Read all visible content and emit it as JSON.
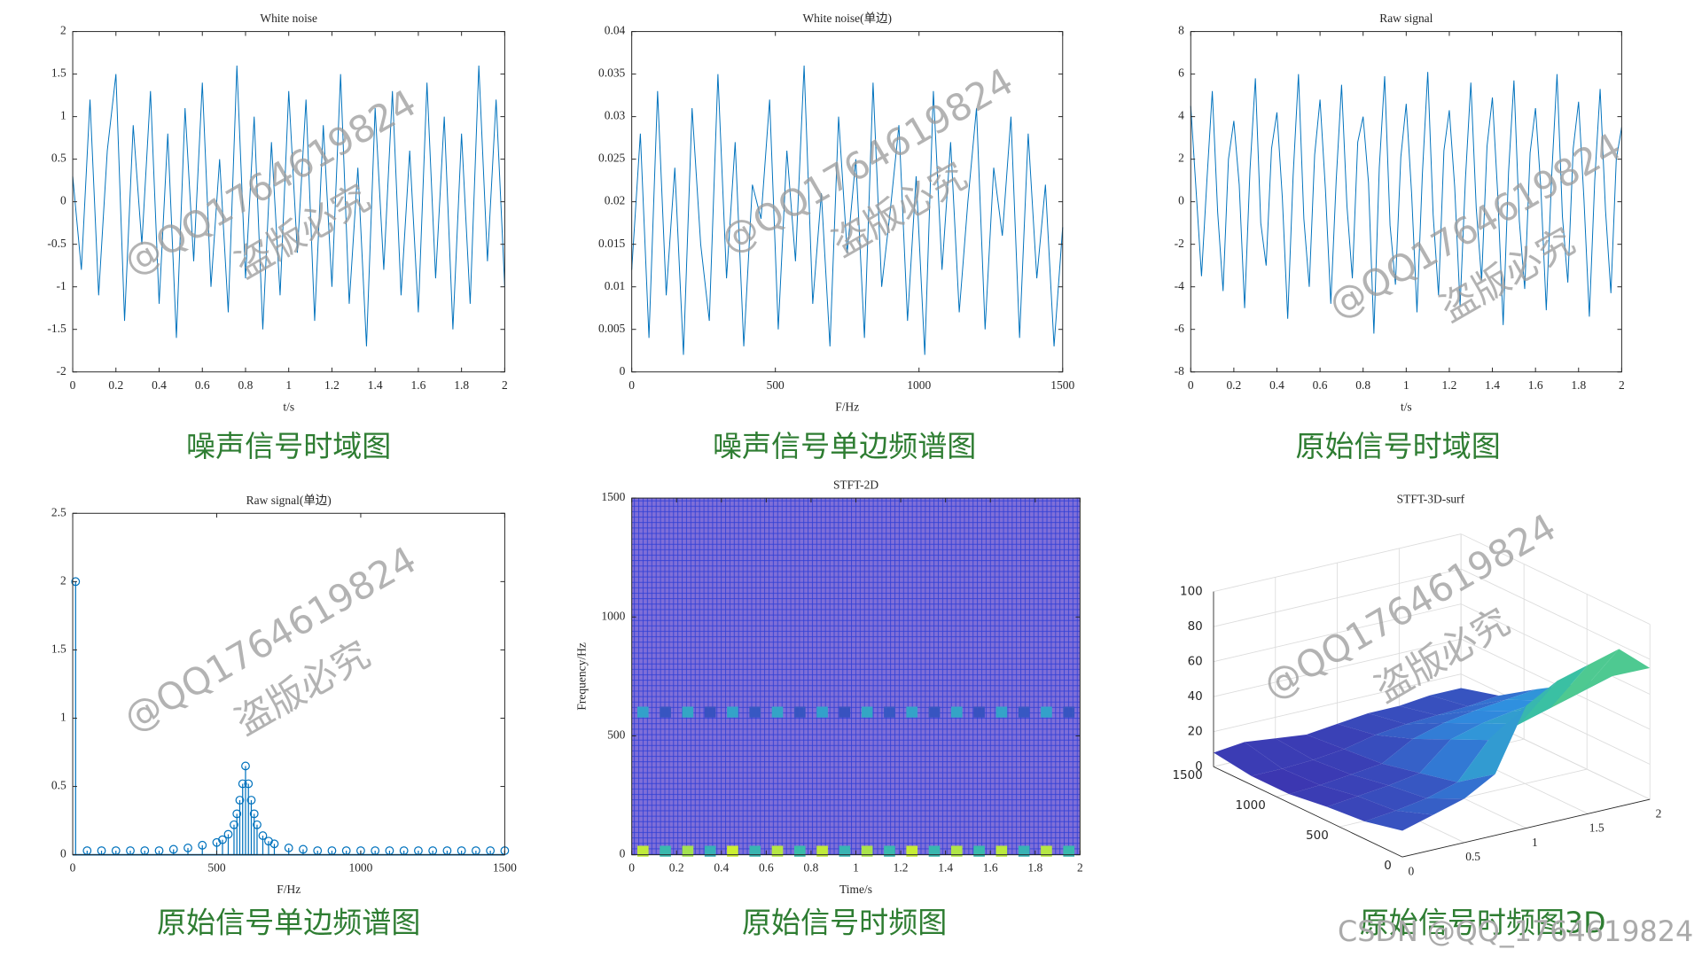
{
  "watermarks": [
    "@QQ1764619824",
    "盗版必究",
    "CSDN @QQ_1764619824"
  ],
  "chart_data": [
    {
      "type": "line",
      "title": "White noise",
      "xlabel": "t/s",
      "caption": "噪声信号时域图",
      "color": "#0072bd",
      "xlim": [
        0,
        2
      ],
      "ylim": [
        -2,
        2
      ],
      "xticks": [
        0,
        0.2,
        0.4,
        0.6,
        0.8,
        1,
        1.2,
        1.4,
        1.6,
        1.8,
        2
      ],
      "yticks": [
        -2,
        -1.5,
        -1,
        -0.5,
        0,
        0.5,
        1,
        1.5,
        2
      ],
      "x": [
        0,
        0.04,
        0.08,
        0.12,
        0.16,
        0.2,
        0.24,
        0.28,
        0.32,
        0.36,
        0.4,
        0.44,
        0.48,
        0.52,
        0.56,
        0.6,
        0.64,
        0.68,
        0.72,
        0.76,
        0.8,
        0.84,
        0.88,
        0.92,
        0.96,
        1,
        1.04,
        1.08,
        1.12,
        1.16,
        1.2,
        1.24,
        1.28,
        1.32,
        1.36,
        1.4,
        1.44,
        1.48,
        1.52,
        1.56,
        1.6,
        1.64,
        1.68,
        1.72,
        1.76,
        1.8,
        1.84,
        1.88,
        1.92,
        1.96,
        2
      ],
      "values": [
        0.3,
        -0.8,
        1.2,
        -1.1,
        0.6,
        1.5,
        -1.4,
        0.9,
        -0.5,
        1.3,
        -1.2,
        0.8,
        -1.6,
        1.1,
        -0.7,
        1.4,
        -1.0,
        0.5,
        -1.3,
        1.6,
        -0.9,
        1.0,
        -1.5,
        0.7,
        -1.1,
        1.3,
        -0.6,
        1.2,
        -1.4,
        0.9,
        -1.0,
        1.5,
        -1.2,
        0.4,
        -1.7,
        1.1,
        -0.8,
        1.3,
        -1.1,
        0.6,
        -1.3,
        1.4,
        -0.9,
        1.0,
        -1.5,
        0.8,
        -1.2,
        1.6,
        -0.7,
        1.2,
        -1.0
      ]
    },
    {
      "type": "line",
      "title": "White noise(单边)",
      "xlabel": "F/Hz",
      "caption": "噪声信号单边频谱图",
      "color": "#0072bd",
      "xlim": [
        0,
        1500
      ],
      "ylim": [
        0,
        0.04
      ],
      "xticks": [
        0,
        500,
        1000,
        1500
      ],
      "yticks": [
        0,
        0.005,
        0.01,
        0.015,
        0.02,
        0.025,
        0.03,
        0.035,
        0.04
      ],
      "x": [
        0,
        30,
        60,
        90,
        120,
        150,
        180,
        210,
        240,
        270,
        300,
        330,
        360,
        390,
        420,
        450,
        480,
        510,
        540,
        570,
        600,
        630,
        660,
        690,
        720,
        750,
        780,
        810,
        840,
        870,
        900,
        930,
        960,
        990,
        1020,
        1050,
        1080,
        1110,
        1140,
        1170,
        1200,
        1230,
        1260,
        1290,
        1320,
        1350,
        1380,
        1410,
        1440,
        1470,
        1500
      ],
      "values": [
        0.012,
        0.028,
        0.004,
        0.033,
        0.009,
        0.024,
        0.002,
        0.031,
        0.015,
        0.006,
        0.035,
        0.011,
        0.027,
        0.003,
        0.022,
        0.018,
        0.032,
        0.005,
        0.026,
        0.013,
        0.036,
        0.008,
        0.021,
        0.003,
        0.03,
        0.014,
        0.025,
        0.004,
        0.034,
        0.01,
        0.019,
        0.029,
        0.006,
        0.023,
        0.002,
        0.033,
        0.012,
        0.027,
        0.007,
        0.02,
        0.031,
        0.005,
        0.024,
        0.016,
        0.03,
        0.004,
        0.028,
        0.011,
        0.022,
        0.003,
        0.017
      ]
    },
    {
      "type": "line",
      "title": "Raw signal",
      "xlabel": "t/s",
      "caption": "原始信号时域图",
      "color": "#0072bd",
      "xlim": [
        0,
        2
      ],
      "ylim": [
        -8,
        8
      ],
      "xticks": [
        0,
        0.2,
        0.4,
        0.6,
        0.8,
        1,
        1.2,
        1.4,
        1.6,
        1.8,
        2
      ],
      "yticks": [
        -8,
        -6,
        -4,
        -2,
        0,
        2,
        4,
        6,
        8
      ],
      "x": [
        0,
        0.025,
        0.05,
        0.075,
        0.1,
        0.125,
        0.15,
        0.175,
        0.2,
        0.225,
        0.25,
        0.275,
        0.3,
        0.325,
        0.35,
        0.375,
        0.4,
        0.425,
        0.45,
        0.475,
        0.5,
        0.525,
        0.55,
        0.575,
        0.6,
        0.625,
        0.65,
        0.675,
        0.7,
        0.725,
        0.75,
        0.775,
        0.8,
        0.825,
        0.85,
        0.875,
        0.9,
        0.925,
        0.95,
        0.975,
        1,
        1.025,
        1.05,
        1.075,
        1.1,
        1.125,
        1.15,
        1.175,
        1.2,
        1.225,
        1.25,
        1.275,
        1.3,
        1.325,
        1.35,
        1.375,
        1.4,
        1.425,
        1.45,
        1.475,
        1.5,
        1.525,
        1.55,
        1.575,
        1.6,
        1.625,
        1.65,
        1.675,
        1.7,
        1.725,
        1.75,
        1.775,
        1.8,
        1.825,
        1.85,
        1.875,
        1.9,
        1.925,
        1.95,
        1.975,
        2
      ],
      "values": [
        4.5,
        0.5,
        -3.5,
        1.0,
        5.2,
        -0.5,
        -4.2,
        2.0,
        3.8,
        0.8,
        -5.0,
        1.5,
        5.8,
        -1.0,
        -3.0,
        2.5,
        4.2,
        0.2,
        -5.5,
        1.2,
        6.0,
        -0.8,
        -4.0,
        2.2,
        4.8,
        0.6,
        -4.8,
        1.0,
        5.5,
        -0.2,
        -3.6,
        2.8,
        4.0,
        0.9,
        -6.2,
        1.6,
        5.9,
        -1.1,
        -3.9,
        2.1,
        4.6,
        0.4,
        -5.2,
        1.3,
        6.1,
        -0.6,
        -4.4,
        2.4,
        4.3,
        0.7,
        -4.9,
        1.1,
        5.6,
        -0.3,
        -3.7,
        2.6,
        4.9,
        0.3,
        -5.8,
        1.4,
        5.7,
        -0.9,
        -4.1,
        2.3,
        4.4,
        0.6,
        -5.1,
        1.2,
        6.0,
        -0.7,
        -3.8,
        2.5,
        4.7,
        0.1,
        -5.4,
        1.0,
        5.3,
        -0.4,
        -4.3,
        2.0,
        3.5
      ]
    },
    {
      "type": "stem",
      "title": "Raw signal(单边)",
      "xlabel": "F/Hz",
      "caption": "原始信号单边频谱图",
      "color": "#0072bd",
      "xlim": [
        0,
        1500
      ],
      "ylim": [
        0,
        2.5
      ],
      "xticks": [
        0,
        500,
        1000,
        1500
      ],
      "yticks": [
        0,
        0.5,
        1,
        1.5,
        2,
        2.5
      ],
      "x": [
        10,
        50,
        100,
        150,
        200,
        250,
        300,
        350,
        400,
        450,
        500,
        520,
        540,
        560,
        570,
        580,
        590,
        600,
        610,
        620,
        630,
        640,
        660,
        680,
        700,
        750,
        800,
        850,
        900,
        950,
        1000,
        1050,
        1100,
        1150,
        1200,
        1250,
        1300,
        1350,
        1400,
        1450,
        1500
      ],
      "values": [
        2.0,
        0.03,
        0.03,
        0.03,
        0.03,
        0.03,
        0.03,
        0.04,
        0.05,
        0.07,
        0.09,
        0.11,
        0.15,
        0.22,
        0.3,
        0.4,
        0.52,
        0.65,
        0.52,
        0.4,
        0.3,
        0.22,
        0.14,
        0.1,
        0.08,
        0.05,
        0.04,
        0.03,
        0.03,
        0.03,
        0.03,
        0.03,
        0.03,
        0.03,
        0.03,
        0.03,
        0.03,
        0.03,
        0.03,
        0.03,
        0.03
      ]
    },
    {
      "type": "heatmap",
      "title": "STFT-2D",
      "xlabel": "Time/s",
      "ylabel": "Frequency/Hz",
      "caption": "原始信号时频图",
      "xlim": [
        0,
        2
      ],
      "ylim": [
        0,
        1500
      ],
      "xticks": [
        0,
        0.2,
        0.4,
        0.6,
        0.8,
        1,
        1.2,
        1.4,
        1.6,
        1.8,
        2
      ],
      "yticks": [
        0,
        500,
        1000,
        1500
      ],
      "colormap": [
        "#3e26a8",
        "#2f8fe0",
        "#3bc3a0",
        "#f9fb0e"
      ],
      "clim": [
        0,
        100
      ],
      "x": [
        0.05,
        0.15,
        0.25,
        0.35,
        0.45,
        0.55,
        0.65,
        0.75,
        0.85,
        0.95,
        1.05,
        1.15,
        1.25,
        1.35,
        1.45,
        1.55,
        1.65,
        1.75,
        1.85,
        1.95
      ],
      "y": [
        15,
        600
      ],
      "values": [
        [
          90,
          60,
          85,
          55,
          92,
          58,
          88,
          62,
          90,
          57,
          86,
          60,
          91,
          59,
          87,
          61,
          89,
          56,
          88,
          60
        ],
        [
          45,
          15,
          48,
          14,
          46,
          16,
          47,
          15,
          45,
          14,
          48,
          16,
          46,
          15,
          47,
          14,
          46,
          16,
          45,
          15
        ]
      ]
    },
    {
      "type": "surface",
      "title": "STFT-3D-surf",
      "caption": "原始信号时频图3D",
      "xlim": [
        0,
        2
      ],
      "ylim": [
        0,
        1500
      ],
      "zlim": [
        0,
        100
      ],
      "xticks": [
        0,
        0.5,
        1,
        1.5,
        2
      ],
      "yticks": [
        0,
        500,
        1000,
        1500
      ],
      "zticks": [
        0,
        20,
        40,
        60,
        80,
        100
      ],
      "colormap": [
        "#3e26a8",
        "#2f8fe0",
        "#3bc3a0",
        "#f9fb0e"
      ],
      "x": [
        0,
        0.25,
        0.5,
        0.75,
        1,
        1.25,
        1.5,
        1.75,
        2
      ],
      "y": [
        0,
        300,
        600,
        900,
        1200,
        1500
      ],
      "values": [
        [
          15,
          20,
          25,
          35,
          70,
          80,
          85,
          90,
          75
        ],
        [
          10,
          12,
          15,
          20,
          40,
          45,
          50,
          55,
          60
        ],
        [
          8,
          10,
          12,
          15,
          30,
          35,
          38,
          40,
          45
        ],
        [
          5,
          6,
          8,
          10,
          20,
          25,
          28,
          30,
          32
        ],
        [
          5,
          5,
          6,
          8,
          12,
          14,
          15,
          16,
          18
        ],
        [
          8,
          10,
          8,
          6,
          8,
          10,
          10,
          12,
          12
        ]
      ]
    }
  ]
}
